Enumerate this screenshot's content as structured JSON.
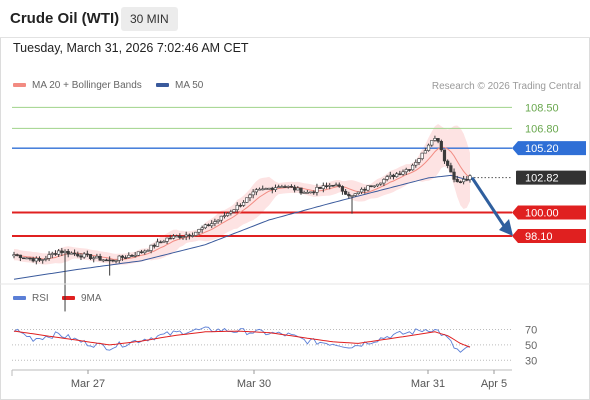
{
  "header": {
    "instrument": "Crude Oil (WTI)",
    "interval": "30 MIN"
  },
  "datetime": "Tuesday, March 31, 2026 7:02:46 AM CET",
  "credit": "Research © 2026 Trading Central",
  "colors": {
    "ma20": "#f28b82",
    "ma50": "#3a5a9c",
    "bollinger_fill": "#fde3e3",
    "resistance_line": "#9fd38a",
    "pivot_line": "#2f6fd6",
    "support_line": "#e02020",
    "arrow": "#2f5f9e",
    "rsi": "#5b7fd6",
    "rsi_ma": "#e02020",
    "candle": "#3a3a3a"
  },
  "chart_data": [
    {
      "type": "candlestick",
      "series": [
        {
          "name": "MA 20 + Bollinger Bands"
        },
        {
          "name": "MA 50"
        }
      ],
      "x_tick_labels": [
        "Mar 27",
        "Mar 30",
        "Mar 31",
        "Apr 5"
      ],
      "ylim": [
        94.3,
        109.5
      ],
      "levels": [
        {
          "label": "108.50",
          "value": 108.5,
          "kind": "resistance"
        },
        {
          "label": "106.80",
          "value": 106.8,
          "kind": "resistance"
        },
        {
          "label": "105.20",
          "value": 105.2,
          "kind": "pivot"
        },
        {
          "label": "102.82",
          "value": 102.82,
          "kind": "last"
        },
        {
          "label": "100.00",
          "value": 100.0,
          "kind": "support"
        },
        {
          "label": "98.10",
          "value": 98.1,
          "kind": "support"
        }
      ],
      "anchors_close": [
        [
          0,
          96.6
        ],
        [
          8,
          96.1
        ],
        [
          14,
          96.9
        ],
        [
          22,
          96.5
        ],
        [
          30,
          96.1
        ],
        [
          40,
          96.8
        ],
        [
          48,
          97.9
        ],
        [
          56,
          98.3
        ],
        [
          64,
          99.4
        ],
        [
          70,
          100.5
        ],
        [
          76,
          101.7
        ],
        [
          84,
          102.2
        ],
        [
          92,
          101.6
        ],
        [
          100,
          102.3
        ],
        [
          106,
          101.3
        ],
        [
          112,
          102.2
        ],
        [
          118,
          102.9
        ],
        [
          124,
          103.6
        ],
        [
          128,
          104.7
        ],
        [
          131,
          106.0
        ],
        [
          133,
          105.9
        ],
        [
          135,
          104.3
        ],
        [
          137,
          103.3
        ],
        [
          139,
          102.4
        ],
        [
          141,
          102.6
        ],
        [
          143,
          102.82
        ]
      ],
      "ma50_anchors": [
        [
          0,
          94.6
        ],
        [
          20,
          95.4
        ],
        [
          40,
          96.1
        ],
        [
          60,
          97.4
        ],
        [
          80,
          99.4
        ],
        [
          100,
          100.8
        ],
        [
          115,
          101.8
        ],
        [
          130,
          102.8
        ],
        [
          137,
          103.0
        ],
        [
          143,
          102.6
        ]
      ],
      "spike_lows": [
        [
          16,
          92.0
        ],
        [
          30,
          94.9
        ],
        [
          106,
          99.9
        ]
      ],
      "forecast_arrow": {
        "from": 102.82,
        "to": 98.1
      }
    },
    {
      "type": "line",
      "series": [
        {
          "name": "RSI"
        },
        {
          "name": "9MA"
        }
      ],
      "y_tick_labels": [
        "70",
        "50",
        "30"
      ],
      "ylim": [
        20,
        85
      ],
      "rsi_anchors": [
        [
          0,
          70
        ],
        [
          6,
          58
        ],
        [
          14,
          64
        ],
        [
          22,
          53
        ],
        [
          30,
          47
        ],
        [
          38,
          55
        ],
        [
          46,
          62
        ],
        [
          54,
          68
        ],
        [
          62,
          70
        ],
        [
          70,
          68
        ],
        [
          78,
          66
        ],
        [
          86,
          63
        ],
        [
          92,
          55
        ],
        [
          100,
          52
        ],
        [
          106,
          48
        ],
        [
          112,
          55
        ],
        [
          118,
          62
        ],
        [
          124,
          66
        ],
        [
          130,
          71
        ],
        [
          133,
          68
        ],
        [
          136,
          58
        ],
        [
          138,
          47
        ],
        [
          140,
          40
        ],
        [
          143,
          46
        ]
      ],
      "rsi_ma_anchors": [
        [
          0,
          68
        ],
        [
          10,
          62
        ],
        [
          20,
          56
        ],
        [
          30,
          50
        ],
        [
          40,
          55
        ],
        [
          50,
          62
        ],
        [
          60,
          67
        ],
        [
          70,
          68
        ],
        [
          80,
          66
        ],
        [
          90,
          60
        ],
        [
          100,
          54
        ],
        [
          108,
          52
        ],
        [
          116,
          57
        ],
        [
          124,
          62
        ],
        [
          132,
          67
        ],
        [
          136,
          62
        ],
        [
          140,
          52
        ],
        [
          143,
          47
        ]
      ]
    }
  ]
}
